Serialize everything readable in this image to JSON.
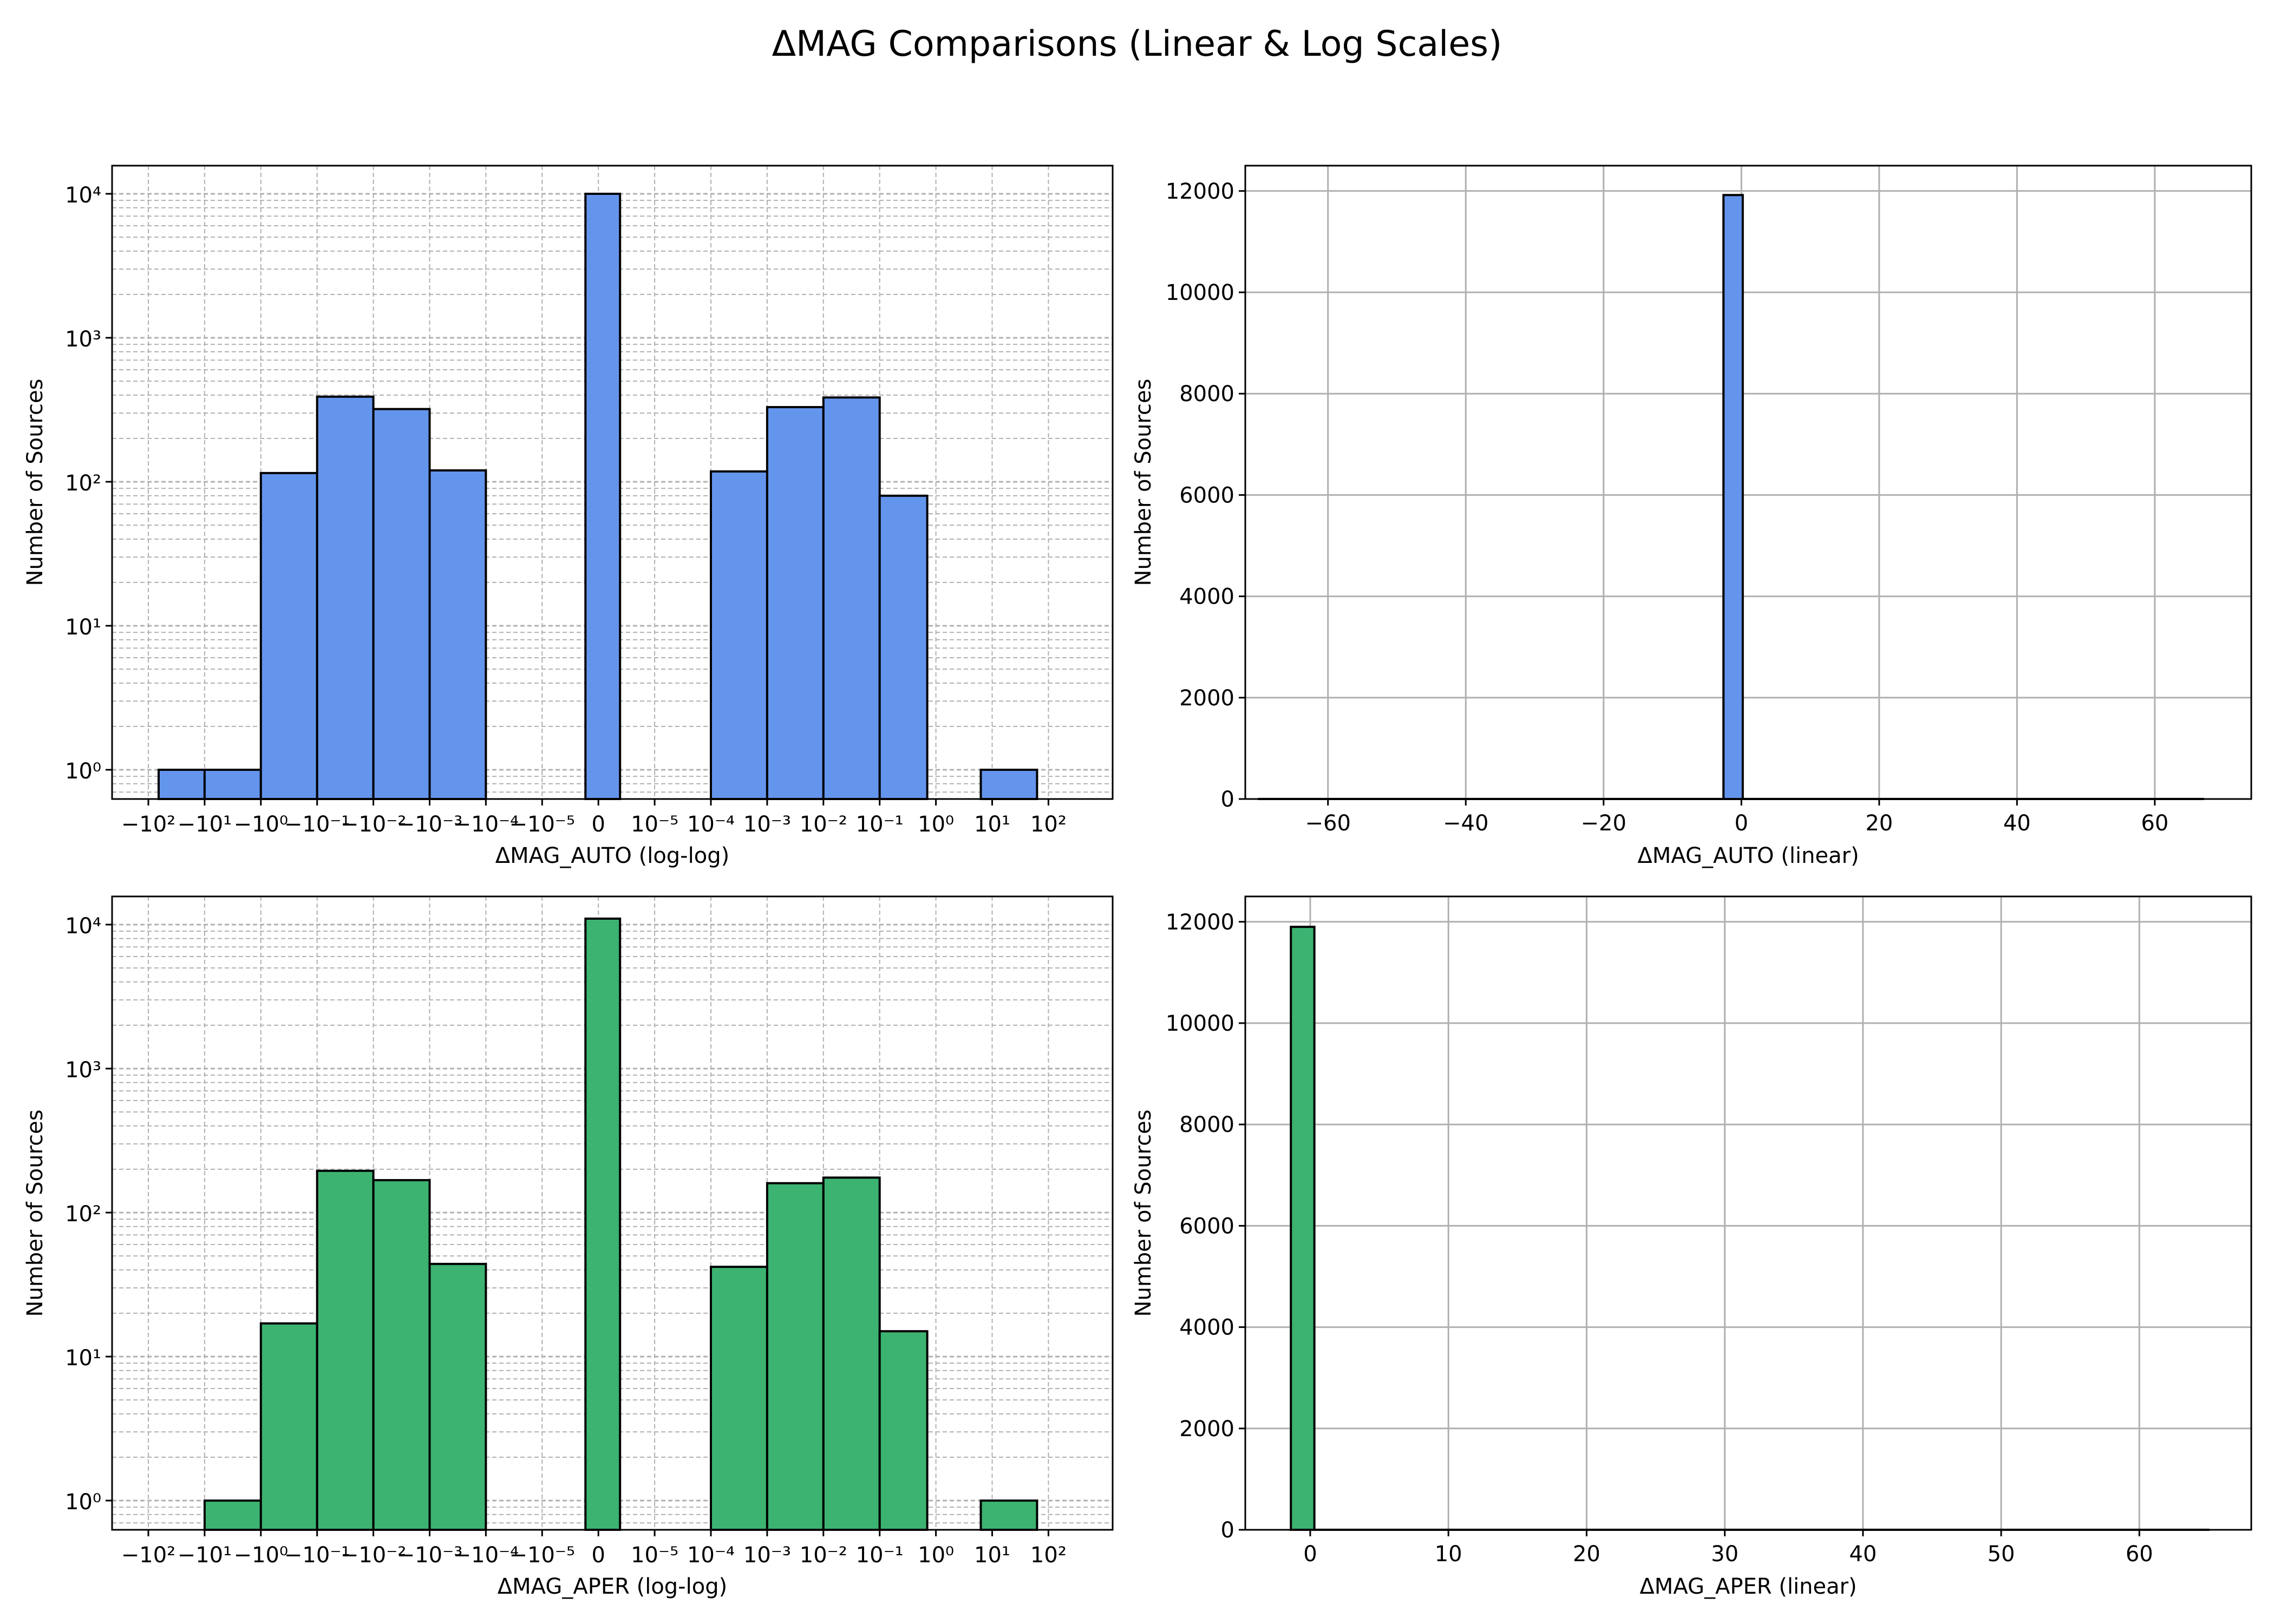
{
  "title": "ΔMAG Comparisons (Linear & Log Scales)",
  "colors": {
    "auto": "#6495ED",
    "aper": "#3CB371",
    "edge": "#000000",
    "grid": "#b0b0b0"
  },
  "chart_data": [
    {
      "id": "auto-loglog",
      "type": "bar",
      "xlabel": "ΔMAG_AUTO (log-log)",
      "ylabel": "Number of Sources",
      "xscale": "symlog",
      "yscale": "log",
      "grid": true,
      "color": "#6495ED",
      "xtick_labels": [
        "−10²",
        "−10¹",
        "−10⁰",
        "−10⁻¹",
        "−10⁻²",
        "−10⁻³",
        "−10⁻⁴",
        "−10⁻⁵",
        "0",
        "10⁻⁵",
        "10⁻⁴",
        "10⁻³",
        "10⁻²",
        "10⁻¹",
        "10⁰",
        "10¹",
        "10²"
      ],
      "ytick_labels": [
        "10⁰",
        "10¹",
        "10²",
        "10³",
        "10⁴"
      ],
      "bins": [
        {
          "from": "−10²",
          "to": "−10¹",
          "count": 1
        },
        {
          "from": "−10¹",
          "to": "−10⁰",
          "count": 1
        },
        {
          "from": "−10⁰",
          "to": "−10⁻¹",
          "count": 115
        },
        {
          "from": "−10⁻¹",
          "to": "−10⁻²",
          "count": 390
        },
        {
          "from": "−10⁻²",
          "to": "−10⁻³",
          "count": 320
        },
        {
          "from": "−10⁻³",
          "to": "−10⁻⁴",
          "count": 120
        },
        {
          "from": "≈−10⁻⁵",
          "to": "≈10⁻⁵",
          "count": 10000
        },
        {
          "from": "10⁻⁴",
          "to": "10⁻³",
          "count": 118
        },
        {
          "from": "10⁻³",
          "to": "10⁻²",
          "count": 330
        },
        {
          "from": "10⁻²",
          "to": "10⁻¹",
          "count": 385
        },
        {
          "from": "10⁻¹",
          "to": "10⁰",
          "count": 80
        },
        {
          "from": "10¹",
          "to": "10²",
          "count": 1
        }
      ]
    },
    {
      "id": "auto-linear",
      "type": "bar",
      "xlabel": "ΔMAG_AUTO (linear)",
      "ylabel": "Number of Sources",
      "grid": true,
      "color": "#6495ED",
      "xlim": [
        -72,
        74
      ],
      "ylim": [
        0,
        12500
      ],
      "xticks": [
        -60,
        -40,
        -20,
        0,
        20,
        40,
        60
      ],
      "xtick_labels": [
        "−60",
        "−40",
        "−20",
        "0",
        "20",
        "40",
        "60"
      ],
      "yticks": [
        0,
        2000,
        4000,
        6000,
        8000,
        10000,
        12000
      ],
      "ytick_labels": [
        "0",
        "2000",
        "4000",
        "6000",
        "8000",
        "10000",
        "12000"
      ],
      "bins": [
        {
          "x0": -70,
          "x1": -2.6,
          "count": 1
        },
        {
          "x0": -2.6,
          "x1": 0.2,
          "count": 11920
        },
        {
          "x0": 0.2,
          "x1": 67,
          "count": 1
        }
      ]
    },
    {
      "id": "aper-loglog",
      "type": "bar",
      "xlabel": "ΔMAG_APER (log-log)",
      "ylabel": "Number of Sources",
      "xscale": "symlog",
      "yscale": "log",
      "grid": true,
      "color": "#3CB371",
      "xtick_labels": [
        "−10²",
        "−10¹",
        "−10⁰",
        "−10⁻¹",
        "−10⁻²",
        "−10⁻³",
        "−10⁻⁴",
        "−10⁻⁵",
        "0",
        "10⁻⁵",
        "10⁻⁴",
        "10⁻³",
        "10⁻²",
        "10⁻¹",
        "10⁰",
        "10¹",
        "10²"
      ],
      "ytick_labels": [
        "10⁰",
        "10¹",
        "10²",
        "10³",
        "10⁴"
      ],
      "bins": [
        {
          "from": "−10¹",
          "to": "−10⁰",
          "count": 1
        },
        {
          "from": "−10⁰",
          "to": "−10⁻¹",
          "count": 17
        },
        {
          "from": "−10⁻¹",
          "to": "−10⁻²",
          "count": 195
        },
        {
          "from": "−10⁻²",
          "to": "−10⁻³",
          "count": 168
        },
        {
          "from": "−10⁻³",
          "to": "−10⁻⁴",
          "count": 44
        },
        {
          "from": "≈−10⁻⁵",
          "to": "≈10⁻⁵",
          "count": 11000
        },
        {
          "from": "10⁻⁴",
          "to": "10⁻³",
          "count": 42
        },
        {
          "from": "10⁻³",
          "to": "10⁻²",
          "count": 160
        },
        {
          "from": "10⁻²",
          "to": "10⁻¹",
          "count": 175
        },
        {
          "from": "10⁻¹",
          "to": "10⁰",
          "count": 15
        },
        {
          "from": "10¹",
          "to": "10²",
          "count": 1
        }
      ]
    },
    {
      "id": "aper-linear",
      "type": "bar",
      "xlabel": "ΔMAG_APER (linear)",
      "ylabel": "Number of Sources",
      "grid": true,
      "color": "#3CB371",
      "xlim": [
        -4.7,
        68.1
      ],
      "ylim": [
        0,
        12500
      ],
      "xticks": [
        0,
        10,
        20,
        30,
        40,
        50,
        60
      ],
      "xtick_labels": [
        "0",
        "10",
        "20",
        "30",
        "40",
        "50",
        "60"
      ],
      "yticks": [
        0,
        2000,
        4000,
        6000,
        8000,
        10000,
        12000
      ],
      "ytick_labels": [
        "0",
        "2000",
        "4000",
        "6000",
        "8000",
        "10000",
        "12000"
      ],
      "bins": [
        {
          "x0": -1.4,
          "x1": 0.3,
          "count": 11900
        },
        {
          "x0": 0.3,
          "x1": 65,
          "count": 1
        }
      ]
    }
  ]
}
